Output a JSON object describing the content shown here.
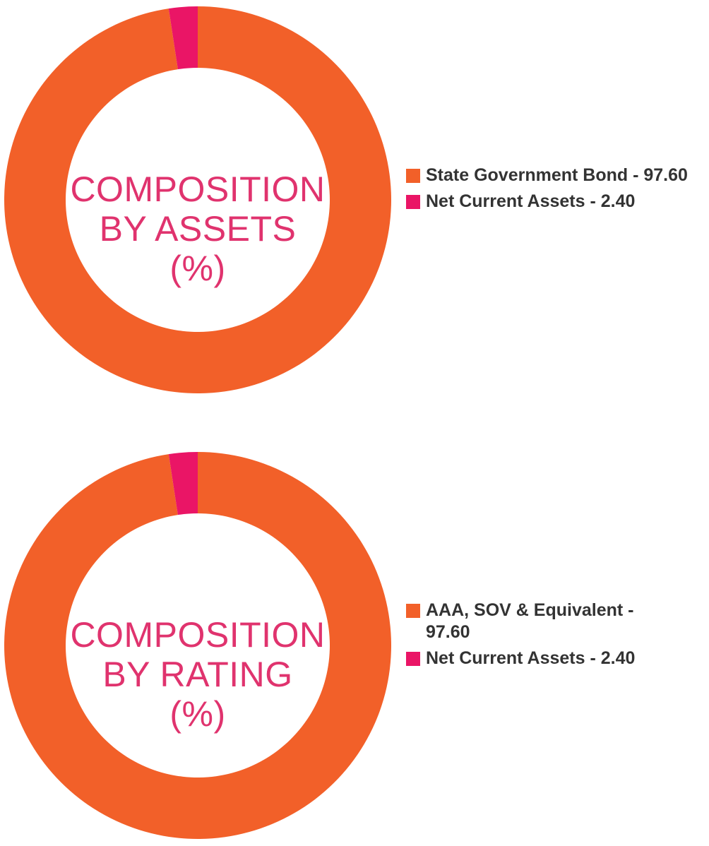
{
  "colors": {
    "orange": "#f26029",
    "pink": "#ea1566",
    "title": "#e0336e",
    "legend_text": "#333333"
  },
  "chart_data": [
    {
      "type": "pie",
      "variant": "donut",
      "center_title": [
        "COMPOSITION",
        "BY ASSETS",
        "(%)"
      ],
      "slices": [
        {
          "label": "State Government Bond - 97.60",
          "value": 97.6,
          "color": "#f26029"
        },
        {
          "label": "Net Current Assets - 2.40",
          "value": 2.4,
          "color": "#ea1566"
        }
      ],
      "legend_placement": "right"
    },
    {
      "type": "pie",
      "variant": "donut",
      "center_title": [
        "COMPOSITION",
        "BY RATING",
        "(%)"
      ],
      "slices": [
        {
          "label": "AAA, SOV & Equivalent - 97.60",
          "value": 97.6,
          "color": "#f26029"
        },
        {
          "label": "Net Current Assets - 2.40",
          "value": 2.4,
          "color": "#ea1566"
        }
      ],
      "legend_placement": "right"
    }
  ]
}
